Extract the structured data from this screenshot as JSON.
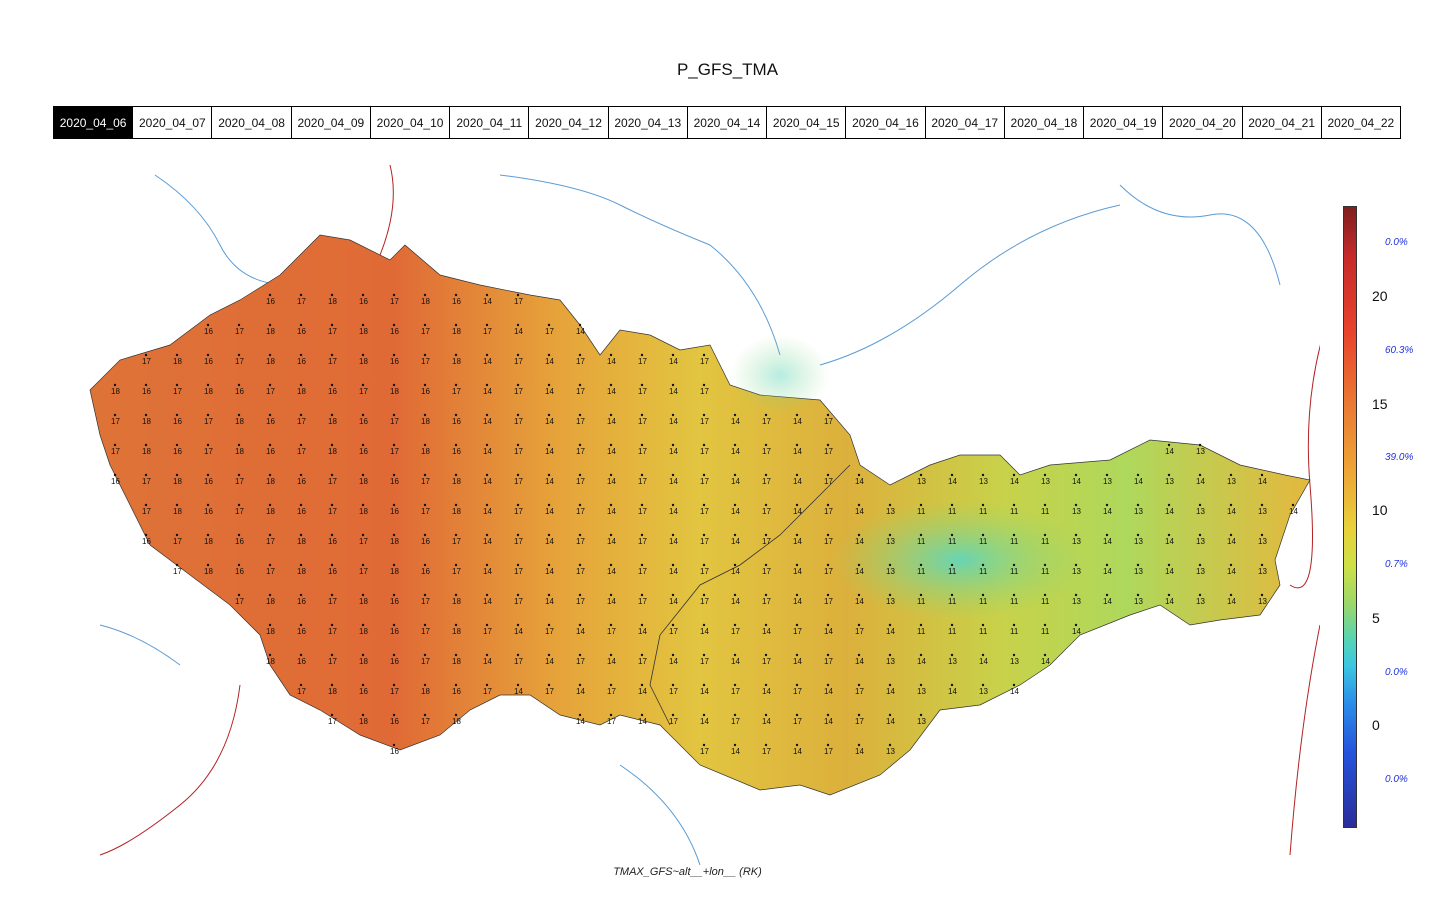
{
  "header": {
    "title": "P_GFS_TMA"
  },
  "tabs": [
    "2020_04_06",
    "2020_04_07",
    "2020_04_08",
    "2020_04_09",
    "2020_04_10",
    "2020_04_11",
    "2020_04_12",
    "2020_04_13",
    "2020_04_14",
    "2020_04_15",
    "2020_04_16",
    "2020_04_17",
    "2020_04_18",
    "2020_04_19",
    "2020_04_20",
    "2020_04_21",
    "2020_04_22"
  ],
  "active_tab": "2020_04_06",
  "colorbar": {
    "ticks": [
      "20",
      "15",
      "10",
      "5",
      "0"
    ],
    "percentages": [
      "0.0%",
      "60.3%",
      "39.0%",
      "0.7%",
      "0.0%",
      "0.0%"
    ],
    "colors": {
      "max": "#7f1f1f",
      "hot": "#e8432c",
      "warm": "#eea337",
      "mild": "#e8d23a",
      "cool": "#54d4b6",
      "cold": "#2553dd",
      "min": "#2a2d9a"
    }
  },
  "map": {
    "region": "Czech Republic and Slovakia",
    "station_labels": [
      "16",
      "17",
      "18",
      "19",
      "15",
      "14",
      "13",
      "12",
      "11",
      "10.2",
      "10.8",
      "9.2",
      "19.5",
      "19.4",
      "18.7"
    ]
  },
  "footer": {
    "caption": "TMAX_GFS~alt__+lon__ (RK)"
  }
}
